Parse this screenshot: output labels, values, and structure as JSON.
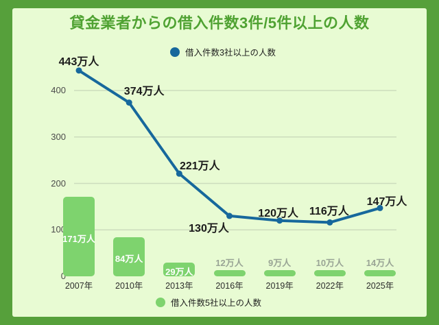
{
  "title": "貸金業者からの借入件数3件/5件以上の人数",
  "legend_top": {
    "label": "借入件数3社以上の人数"
  },
  "legend_bottom": {
    "label": "借入件数5社以上の人数"
  },
  "colors": {
    "frame": "#56a03b",
    "panel": "#e8fbd3",
    "title": "#4fa232",
    "grid": "#ccdcbd",
    "line": "#17689c",
    "bar": "#7ed36e",
    "axis_text": "#4b4b4b",
    "bar_label_inside": "#ffffff",
    "bar_label_outside": "#99a495",
    "line_label": "#1b1b1b"
  },
  "chart_data": {
    "type": "line+bar",
    "title": "貸金業者からの借入件数3件/5件以上の人数",
    "categories": [
      "2007年",
      "2010年",
      "2013年",
      "2016年",
      "2019年",
      "2022年",
      "2025年"
    ],
    "series": [
      {
        "name": "借入件数3社以上の人数",
        "type": "line",
        "color": "#17689c",
        "values": [
          443,
          374,
          221,
          130,
          120,
          116,
          147
        ],
        "labels": [
          "443万人",
          "374万人",
          "221万人",
          "130万人",
          "120万人",
          "116万人",
          "147万人"
        ]
      },
      {
        "name": "借入件数5社以上の人数",
        "type": "bar",
        "color": "#7ed36e",
        "values": [
          171,
          84,
          29,
          12,
          9,
          10,
          14
        ],
        "labels": [
          "171万人",
          "84万人",
          "29万人",
          "12万人",
          "9万人",
          "10万人",
          "14万人"
        ]
      }
    ],
    "yticks": [
      0,
      100,
      200,
      300,
      400
    ],
    "ylim": [
      0,
      400
    ],
    "grid": true,
    "legend_position": {
      "line": "top",
      "bar": "bottom"
    },
    "unit": "万人"
  }
}
